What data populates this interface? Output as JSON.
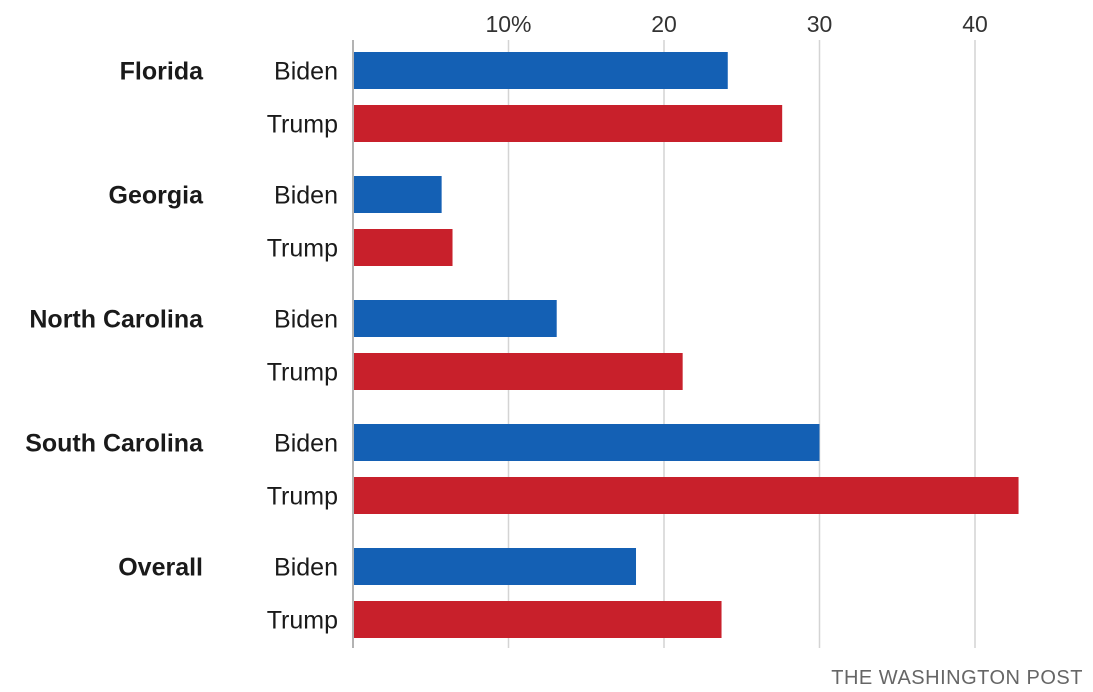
{
  "credit": "THE WASHINGTON POST",
  "chart_data": {
    "type": "bar",
    "orientation": "horizontal",
    "xlim": [
      0,
      45
    ],
    "grid": true,
    "ticks": [
      {
        "value": 10,
        "label": "10%"
      },
      {
        "value": 20,
        "label": "20"
      },
      {
        "value": 30,
        "label": "30"
      },
      {
        "value": 40,
        "label": "40"
      }
    ],
    "colors": {
      "Biden": "#1460b4",
      "Trump": "#c8202b"
    },
    "groups": [
      {
        "label": "Florida",
        "bars": [
          {
            "candidate": "Biden",
            "value": 24.1
          },
          {
            "candidate": "Trump",
            "value": 27.6
          }
        ]
      },
      {
        "label": "Georgia",
        "bars": [
          {
            "candidate": "Biden",
            "value": 5.7
          },
          {
            "candidate": "Trump",
            "value": 6.4
          }
        ]
      },
      {
        "label": "North Carolina",
        "bars": [
          {
            "candidate": "Biden",
            "value": 13.1
          },
          {
            "candidate": "Trump",
            "value": 21.2
          }
        ]
      },
      {
        "label": "South Carolina",
        "bars": [
          {
            "candidate": "Biden",
            "value": 30.0
          },
          {
            "candidate": "Trump",
            "value": 42.8
          }
        ]
      },
      {
        "label": "Overall",
        "bars": [
          {
            "candidate": "Biden",
            "value": 18.2
          },
          {
            "candidate": "Trump",
            "value": 23.7
          }
        ]
      }
    ]
  }
}
